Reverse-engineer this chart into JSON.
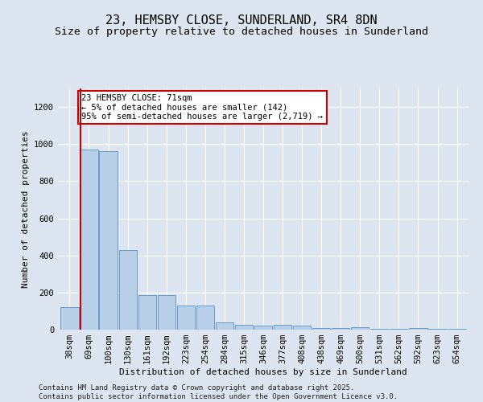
{
  "title_line1": "23, HEMSBY CLOSE, SUNDERLAND, SR4 8DN",
  "title_line2": "Size of property relative to detached houses in Sunderland",
  "xlabel": "Distribution of detached houses by size in Sunderland",
  "ylabel": "Number of detached properties",
  "categories": [
    "38sqm",
    "69sqm",
    "100sqm",
    "130sqm",
    "161sqm",
    "192sqm",
    "223sqm",
    "254sqm",
    "284sqm",
    "315sqm",
    "346sqm",
    "377sqm",
    "408sqm",
    "438sqm",
    "469sqm",
    "500sqm",
    "531sqm",
    "562sqm",
    "592sqm",
    "623sqm",
    "654sqm"
  ],
  "values": [
    120,
    970,
    960,
    430,
    185,
    185,
    130,
    130,
    40,
    25,
    20,
    28,
    22,
    10,
    8,
    12,
    5,
    5,
    8,
    4,
    5
  ],
  "bar_color": "#b8cfe8",
  "bar_edge_color": "#6699cc",
  "vline_color": "#cc0000",
  "annotation_text": "23 HEMSBY CLOSE: 71sqm\n← 5% of detached houses are smaller (142)\n95% of semi-detached houses are larger (2,719) →",
  "annotation_box_facecolor": "#ffffff",
  "annotation_box_edgecolor": "#cc0000",
  "ylim": [
    0,
    1300
  ],
  "yticks": [
    0,
    200,
    400,
    600,
    800,
    1000,
    1200
  ],
  "bg_color": "#dde6f0",
  "plot_bg_color": "#dde6f0",
  "grid_color": "#ffffff",
  "footer_line1": "Contains HM Land Registry data © Crown copyright and database right 2025.",
  "footer_line2": "Contains public sector information licensed under the Open Government Licence v3.0.",
  "title_fontsize": 11,
  "subtitle_fontsize": 9.5,
  "axis_label_fontsize": 8,
  "tick_fontsize": 7.5,
  "annotation_fontsize": 7.5,
  "footer_fontsize": 6.5
}
